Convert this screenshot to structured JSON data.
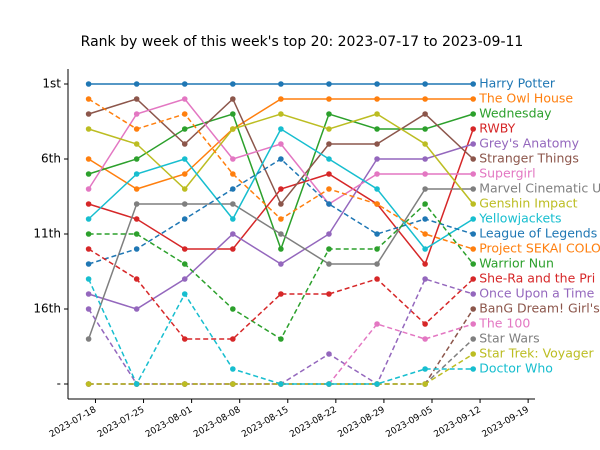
{
  "chart_data": {
    "type": "line",
    "title": "Rank by week of this week's top 20: 2023-07-17 to 2023-09-11",
    "x": [
      "2023-07-17",
      "2023-07-24",
      "2023-07-31",
      "2023-08-07",
      "2023-08-14",
      "2023-08-21",
      "2023-08-28",
      "2023-09-04",
      "2023-09-11"
    ],
    "xlim": [
      "2023-07-14",
      "2023-09-20"
    ],
    "xticks": [
      "2023-07-18",
      "2023-07-25",
      "2023-08-01",
      "2023-08-08",
      "2023-08-15",
      "2023-08-22",
      "2023-08-29",
      "2023-09-05",
      "2023-09-12",
      "2023-09-19"
    ],
    "ylim": [
      22,
      0
    ],
    "yticks": [
      {
        "value": 1,
        "label": "1st"
      },
      {
        "value": 6,
        "label": "6th"
      },
      {
        "value": 11,
        "label": "11th"
      },
      {
        "value": 16,
        "label": "16th"
      },
      {
        "value": 21,
        "label": "-"
      }
    ],
    "series": [
      {
        "name": "Harry Potter",
        "color": "#1f77b4",
        "linestyle": "solid",
        "values": [
          1,
          1,
          1,
          1,
          1,
          1,
          1,
          1,
          1
        ]
      },
      {
        "name": "The Owl House",
        "color": "#ff7f0e",
        "linestyle": "solid",
        "values": [
          6,
          8,
          7,
          4,
          2,
          2,
          2,
          2,
          2
        ]
      },
      {
        "name": "Wednesday",
        "color": "#2ca02c",
        "linestyle": "solid",
        "values": [
          7,
          6,
          4,
          3,
          12,
          3,
          4,
          4,
          3
        ]
      },
      {
        "name": "RWBY",
        "color": "#d62728",
        "linestyle": "solid",
        "values": [
          9,
          10,
          12,
          12,
          8,
          7,
          9,
          13,
          4
        ]
      },
      {
        "name": "Grey's Anatomy",
        "color": "#9467bd",
        "linestyle": "solid",
        "values": [
          15,
          16,
          14,
          11,
          13,
          11,
          6,
          6,
          5
        ]
      },
      {
        "name": "Stranger Things",
        "color": "#8c564b",
        "linestyle": "solid",
        "values": [
          3,
          2,
          5,
          2,
          9,
          5,
          5,
          3,
          6
        ]
      },
      {
        "name": "Supergirl",
        "color": "#e377c2",
        "linestyle": "solid",
        "values": [
          8,
          3,
          2,
          6,
          5,
          9,
          7,
          7,
          7
        ]
      },
      {
        "name": "Marvel Cinematic U",
        "color": "#7f7f7f",
        "linestyle": "solid",
        "values": [
          18,
          9,
          9,
          9,
          11,
          13,
          13,
          8,
          8
        ]
      },
      {
        "name": "Genshin Impact",
        "color": "#bcbd22",
        "linestyle": "solid",
        "values": [
          4,
          5,
          8,
          4,
          3,
          4,
          3,
          5,
          9
        ]
      },
      {
        "name": "Yellowjackets",
        "color": "#17becf",
        "linestyle": "solid",
        "values": [
          10,
          7,
          6,
          10,
          4,
          6,
          8,
          12,
          10
        ]
      },
      {
        "name": "League of Legends",
        "color": "#1f77b4",
        "linestyle": "dashed",
        "values": [
          13,
          12,
          10,
          8,
          6,
          9,
          11,
          10,
          11
        ]
      },
      {
        "name": "Project SEKAI COLO",
        "color": "#ff7f0e",
        "linestyle": "dashed",
        "values": [
          2,
          4,
          3,
          7,
          10,
          8,
          9,
          11,
          12
        ]
      },
      {
        "name": "Warrior Nun",
        "color": "#2ca02c",
        "linestyle": "dashed",
        "values": [
          11,
          11,
          13,
          16,
          18,
          12,
          12,
          9,
          13
        ]
      },
      {
        "name": "She-Ra and the Pri",
        "color": "#d62728",
        "linestyle": "dashed",
        "values": [
          12,
          14,
          18,
          18,
          15,
          15,
          14,
          17,
          14
        ]
      },
      {
        "name": "Once Upon a Time",
        "color": "#9467bd",
        "linestyle": "dashed",
        "values": [
          16,
          21,
          21,
          21,
          21,
          19,
          21,
          14,
          15
        ]
      },
      {
        "name": "BanG Dream! Girl's",
        "color": "#8c564b",
        "linestyle": "dashed",
        "values": [
          21,
          21,
          21,
          21,
          21,
          21,
          21,
          21,
          16
        ]
      },
      {
        "name": "The 100",
        "color": "#e377c2",
        "linestyle": "dashed",
        "values": [
          21,
          21,
          21,
          21,
          21,
          21,
          17,
          18,
          17
        ]
      },
      {
        "name": "Star Wars",
        "color": "#7f7f7f",
        "linestyle": "dashed",
        "values": [
          21,
          21,
          21,
          21,
          21,
          21,
          21,
          21,
          18
        ]
      },
      {
        "name": "Star Trek: Voyager",
        "color": "#bcbd22",
        "linestyle": "dashed",
        "values": [
          21,
          21,
          21,
          21,
          21,
          21,
          21,
          21,
          19
        ]
      },
      {
        "name": "Doctor Who",
        "color": "#17becf",
        "linestyle": "dashed",
        "values": [
          14,
          21,
          15,
          20,
          21,
          21,
          21,
          20,
          20
        ]
      }
    ]
  }
}
